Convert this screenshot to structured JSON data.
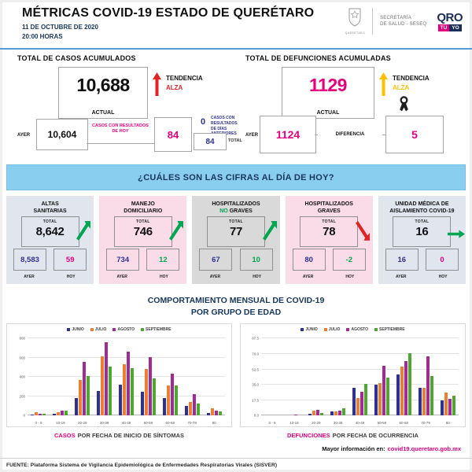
{
  "header": {
    "title": "MÉTRICAS COVID-19 ESTADO DE QUERÉTARO",
    "date": "11 DE OCTUBRE DE 2020",
    "time": "20:00 HORAS",
    "shield_caption": "QUERÉTARO",
    "secretaria_line1": "SECRETARÍA",
    "secretaria_line2": "DE SALUD - SESEQ",
    "qro": "QRO",
    "tu": "TÚ",
    "yo": "YO"
  },
  "casos": {
    "title": "TOTAL DE CASOS ACUMULADOS",
    "actual": "10,688",
    "actual_label": "ACTUAL",
    "tendencia_label": "TENDENCIA",
    "tendencia_value": "ALZA",
    "ayer_label": "AYER",
    "ayer": "10,604",
    "hoy_label": "CASOS CON RESULTADOS DE HOY",
    "hoy": "84",
    "anteriores": "0",
    "anteriores_label": "CASOS CON RESULTADOS DE DÍAS ANTERIORES",
    "total": "84",
    "total_label": "TOTAL"
  },
  "defunciones": {
    "title": "TOTAL DE DEFUNCIONES ACUMULADAS",
    "actual": "1129",
    "actual_label": "ACTUAL",
    "tendencia_label": "TENDENCIA",
    "tendencia_value": "ALZA",
    "ayer_label": "AYER",
    "ayer": "1124",
    "diferencia_label": "DIFERENCIA",
    "diferencia": "5"
  },
  "banner": {
    "question": "¿CUÁLES SON LAS CIFRAS AL DÍA DE HOY?"
  },
  "cards": [
    {
      "title1": "ALTAS",
      "title2_accent": "",
      "title2": "SANITARIAS",
      "total_label": "TOTAL",
      "total": "8,642",
      "ayer": "8,583",
      "hoy": "59",
      "ayer_label": "AYER",
      "hoy_label": "HOY",
      "trend": "up",
      "hoy_color": "#e6007e"
    },
    {
      "title1": "MANEJO",
      "title2_accent": "",
      "title2": "DOMICILIARIO",
      "total_label": "TOTAL",
      "total": "746",
      "ayer": "734",
      "hoy": "12",
      "ayer_label": "AYER",
      "hoy_label": "HOY",
      "trend": "up",
      "hoy_color": "#00a650"
    },
    {
      "title1": "HOSPITALIZADOS",
      "title2_accent": "NO",
      "title2": "GRAVES",
      "total_label": "TOTAL",
      "total": "77",
      "ayer": "67",
      "hoy": "10",
      "ayer_label": "AYER",
      "hoy_label": "HOY",
      "trend": "up",
      "hoy_color": "#00a650"
    },
    {
      "title1": "HOSPITALIZADOS",
      "title2_accent": "",
      "title2": "GRAVES",
      "total_label": "TOTAL",
      "total": "78",
      "ayer": "80",
      "hoy": "-2",
      "ayer_label": "AYER",
      "hoy_label": "HOY",
      "trend": "down",
      "hoy_color": "#00a650"
    },
    {
      "title1": "UNIDAD MÉDICA DE",
      "title2_accent": "",
      "title2": "AISLAMIENTO COVID-19",
      "total_label": "TOTAL",
      "total": "16",
      "ayer": "16",
      "hoy": "0",
      "ayer_label": "AYER",
      "hoy_label": "HOY",
      "trend": "flat",
      "hoy_color": "#e6007e"
    }
  ],
  "charts_section": {
    "title_line1": "COMPORTAMIENTO MENSUAL DE COVID-19",
    "title_line2": "POR GRUPO DE EDAD",
    "left_caption_accent": "CASOS",
    "left_caption_rest": "POR FECHA DE INICIO DE SÍNTOMAS",
    "right_caption_accent": "DEFUNCIONES",
    "right_caption_rest": "POR FECHA DE OCURRENCIA"
  },
  "chart_data": [
    {
      "type": "bar",
      "title": "CASOS POR FECHA DE INICIO DE SÍNTOMAS",
      "categories": [
        "0 - 9",
        "10-19",
        "20-29",
        "30-39",
        "40-49",
        "50-59",
        "60-69",
        "70-79",
        "80"
      ],
      "series": [
        {
          "name": "JUNIO",
          "color": "#2e3192",
          "values": [
            10,
            18,
            185,
            260,
            325,
            250,
            180,
            100,
            28
          ]
        },
        {
          "name": "JULIO",
          "color": "#ed7d31",
          "values": [
            35,
            35,
            370,
            615,
            535,
            485,
            315,
            140,
            78
          ]
        },
        {
          "name": "AGOSTO",
          "color": "#a02b93",
          "values": [
            22,
            55,
            560,
            760,
            665,
            605,
            435,
            228,
            56
          ]
        },
        {
          "name": "SEPTIEMBRE",
          "color": "#4ea72e",
          "values": [
            16,
            50,
            415,
            510,
            490,
            385,
            312,
            130,
            45
          ]
        }
      ],
      "xlabel": "",
      "ylabel": "",
      "ylim": [
        0,
        800
      ],
      "ytick_labels": [
        "0",
        "200",
        "400",
        "600",
        "800"
      ],
      "grid": true,
      "legend_position": "top"
    },
    {
      "type": "bar",
      "title": "DEFUNCIONES POR FECHA DE OCURRENCIA",
      "categories": [
        "0 - 9",
        "10-19",
        "20-29",
        "30-39",
        "40-49",
        "50-59",
        "60-69",
        "70-79",
        "80"
      ],
      "series": [
        {
          "name": "JUNIO",
          "color": "#2e3192",
          "values": [
            0,
            0,
            2,
            5,
            32,
            35,
            47,
            32,
            17
          ]
        },
        {
          "name": "JULIO",
          "color": "#ed7d31",
          "values": [
            0,
            0,
            6,
            5,
            20,
            37,
            56,
            32,
            26
          ]
        },
        {
          "name": "AGOSTO",
          "color": "#a02b93",
          "values": [
            0,
            1,
            7,
            6,
            27,
            57,
            62,
            67,
            19
          ]
        },
        {
          "name": "SEPTIEMBRE",
          "color": "#4ea72e",
          "values": [
            0,
            0,
            3,
            8,
            36,
            43,
            71,
            45,
            23
          ]
        }
      ],
      "xlabel": "",
      "ylabel": "",
      "ylim": [
        0,
        87.5
      ],
      "ytick_labels": [
        "0.0",
        "17.5",
        "35.0",
        "52.5",
        "70.0",
        "87.5"
      ],
      "grid": true,
      "legend_position": "top"
    }
  ],
  "footer": {
    "more_info_label": "Mayor información en:",
    "more_info_link": "covid19.queretaro.gob.mx",
    "source": "FUENTE: Plataforma Sistema  de Vigilancia Epidemiológica de Enfermedades Respiratorias Virales (SISVER)"
  },
  "colors": {
    "magenta": "#e6007e",
    "navy": "#2e3192",
    "header_navy": "#17365d",
    "red": "#e02424",
    "gold": "#ffc000",
    "green": "#00a650",
    "banner_blue": "#8aceef",
    "card_blue": "#e1e6ee",
    "card_pink": "#fadce9",
    "card_gray": "#d9d9d9"
  }
}
